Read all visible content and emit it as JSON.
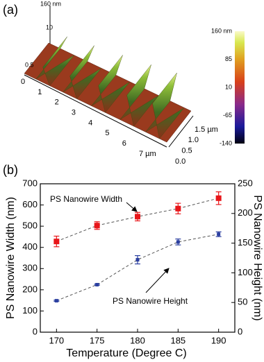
{
  "afm_image": {
    "panel_label": "(a)",
    "z_axis_labels": [
      "160 nm",
      "10",
      "0.5"
    ],
    "x_labels": [
      "0",
      "1",
      "2",
      "3",
      "4",
      "5",
      "6",
      "7 µm"
    ],
    "y_labels": [
      "0.0",
      "0.5",
      "1.0",
      "1.5 µm"
    ],
    "colorbar_labels": [
      "160 nm",
      "85",
      "10",
      "-65",
      "-140"
    ]
  },
  "chart_data": {
    "type": "errorbar-line",
    "panel_label": "(b)",
    "x_label": "Temperature (Degree C)",
    "y_label": "PS Nanowire Width (nm)",
    "y2_label": "PS Nanowire Height (nm)",
    "x": [
      170,
      175,
      180,
      185,
      190
    ],
    "xlim": [
      168,
      192
    ],
    "xticks": [
      170,
      175,
      180,
      185,
      190
    ],
    "ylim": [
      0,
      700
    ],
    "yticks": [
      0,
      100,
      200,
      300,
      400,
      500,
      600,
      700
    ],
    "y2lim": [
      0,
      250
    ],
    "y2ticks": [
      0,
      50,
      100,
      150,
      200,
      250
    ],
    "series": [
      {
        "name": "PS Nanowire Width",
        "color": "#e8161a",
        "values": [
          428,
          503,
          545,
          583,
          632
        ],
        "errors": [
          25,
          18,
          20,
          25,
          30
        ]
      },
      {
        "name": "PS Nanowire Height",
        "color": "#2b3fa0",
        "axis": "y2",
        "values": [
          53,
          80,
          122,
          152,
          165
        ],
        "errors": [
          1,
          1,
          7,
          5,
          4
        ]
      }
    ],
    "annotations": [
      "PS Nanowire Width",
      "PS Nanowire Height"
    ]
  }
}
